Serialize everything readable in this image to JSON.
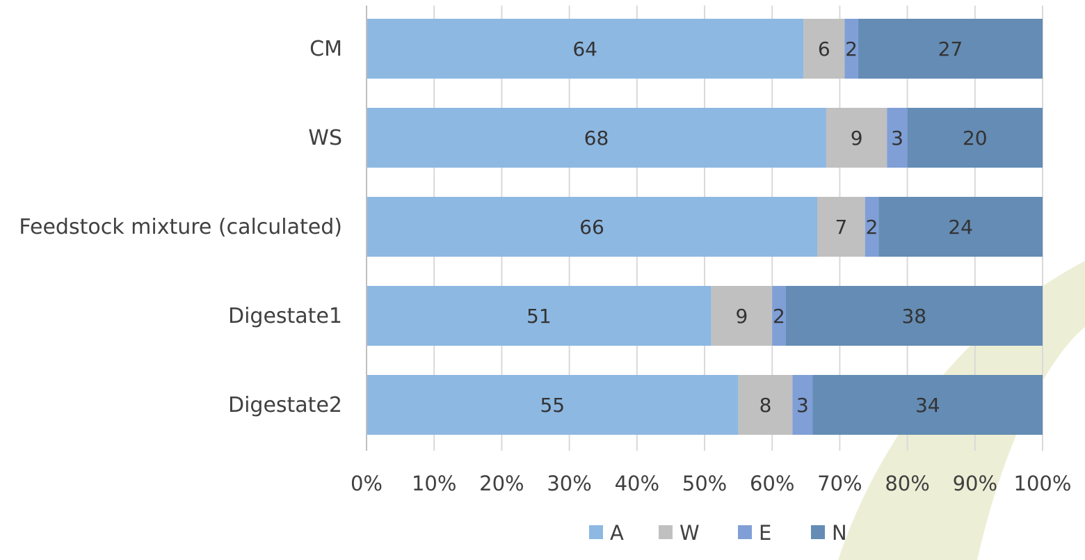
{
  "chart_data": {
    "type": "bar",
    "orientation": "horizontal",
    "stacked": "percent",
    "categories": [
      "CM",
      "WS",
      "Feedstock mixture (calculated)",
      "Digestate1",
      "Digestate2"
    ],
    "series": [
      {
        "name": "A",
        "color": "#8db8e2",
        "values": [
          64,
          68,
          66,
          51,
          55
        ]
      },
      {
        "name": "W",
        "color": "#c0c0c0",
        "values": [
          6,
          9,
          7,
          9,
          8
        ]
      },
      {
        "name": "E",
        "color": "#7f9fd6",
        "values": [
          2,
          3,
          2,
          2,
          3
        ]
      },
      {
        "name": "N",
        "color": "#648cb4",
        "values": [
          27,
          20,
          24,
          38,
          34
        ]
      }
    ],
    "xlim": [
      0,
      100
    ],
    "x_ticks": [
      "0%",
      "10%",
      "20%",
      "30%",
      "40%",
      "50%",
      "60%",
      "70%",
      "80%",
      "90%",
      "100%"
    ],
    "grid": "vertical",
    "legend": "bottom"
  }
}
